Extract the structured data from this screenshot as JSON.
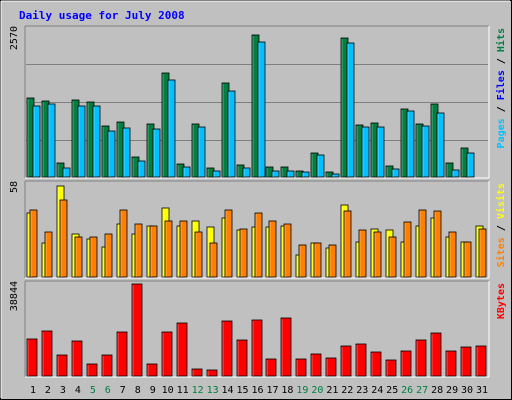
{
  "chart_data": [
    {
      "type": "bar",
      "title": "Daily usage for July 2008",
      "ymax_label": "2570",
      "ylabel_parts": [
        {
          "text": "Pages",
          "color": "#00C0FF"
        },
        {
          "text": " / ",
          "color": "#000000"
        },
        {
          "text": "Files",
          "color": "#0000FF"
        },
        {
          "text": " / ",
          "color": "#000000"
        },
        {
          "text": "Hits",
          "color": "#008040"
        }
      ],
      "ylim": [
        0,
        2570
      ],
      "categories": [
        "1",
        "2",
        "3",
        "4",
        "5",
        "6",
        "7",
        "8",
        "9",
        "10",
        "11",
        "12",
        "13",
        "14",
        "15",
        "16",
        "17",
        "18",
        "19",
        "20",
        "21",
        "22",
        "23",
        "24",
        "25",
        "26",
        "27",
        "28",
        "29",
        "30",
        "31"
      ],
      "weekend_days": [
        "5",
        "6",
        "12",
        "13",
        "19",
        "20",
        "26",
        "27"
      ],
      "series": [
        {
          "name": "Hits",
          "color": "#008040",
          "values": [
            1380,
            1320,
            240,
            1340,
            1310,
            880,
            960,
            340,
            920,
            1800,
            220,
            920,
            150,
            1640,
            200,
            2470,
            180,
            180,
            110,
            420,
            90,
            2420,
            900,
            940,
            190,
            1180,
            920,
            1270,
            240,
            510,
            0
          ]
        },
        {
          "name": "Files",
          "color": "#0000FF",
          "values": [
            0,
            0,
            0,
            0,
            0,
            0,
            0,
            0,
            0,
            0,
            0,
            0,
            0,
            0,
            0,
            0,
            0,
            0,
            0,
            0,
            0,
            0,
            0,
            0,
            0,
            0,
            0,
            0,
            0,
            0,
            0
          ]
        },
        {
          "name": "Pages",
          "color": "#00C0FF",
          "values": [
            1230,
            1260,
            150,
            1240,
            1240,
            800,
            850,
            270,
            830,
            1680,
            180,
            870,
            110,
            1490,
            160,
            2350,
            100,
            110,
            80,
            390,
            60,
            2320,
            870,
            870,
            140,
            1150,
            880,
            1120,
            130,
            420,
            0
          ]
        }
      ]
    },
    {
      "type": "bar",
      "ymax_label": "58",
      "ylabel_parts": [
        {
          "text": "Sites",
          "color": "#FF8000"
        },
        {
          "text": " / ",
          "color": "#000000"
        },
        {
          "text": "Visits",
          "color": "#FFFF00"
        }
      ],
      "ylim": [
        0,
        58
      ],
      "categories": [
        "1",
        "2",
        "3",
        "4",
        "5",
        "6",
        "7",
        "8",
        "9",
        "10",
        "11",
        "12",
        "13",
        "14",
        "15",
        "16",
        "17",
        "18",
        "19",
        "20",
        "21",
        "22",
        "23",
        "24",
        "25",
        "26",
        "27",
        "28",
        "29",
        "30",
        "31"
      ],
      "series": [
        {
          "name": "Visits",
          "color": "#FFFF00",
          "values": [
            40,
            21,
            57,
            27,
            24,
            19,
            33,
            27,
            32,
            43,
            32,
            35,
            31,
            37,
            29,
            31,
            31,
            32,
            14,
            21,
            18,
            45,
            22,
            30,
            29,
            22,
            32,
            37,
            25,
            22,
            32
          ]
        },
        {
          "name": "Sites",
          "color": "#FF8000",
          "values": [
            42,
            28,
            48,
            25,
            25,
            27,
            42,
            33,
            32,
            35,
            35,
            28,
            21,
            42,
            30,
            40,
            35,
            33,
            20,
            21,
            20,
            41,
            29,
            28,
            25,
            34,
            42,
            41,
            28,
            22,
            30
          ]
        }
      ]
    },
    {
      "type": "bar",
      "ymax_label": "38844",
      "ylabel_parts": [
        {
          "text": "KBytes",
          "color": "#FF0000"
        }
      ],
      "ylim": [
        0,
        38844
      ],
      "categories": [
        "1",
        "2",
        "3",
        "4",
        "5",
        "6",
        "7",
        "8",
        "9",
        "10",
        "11",
        "12",
        "13",
        "14",
        "15",
        "16",
        "17",
        "18",
        "19",
        "20",
        "21",
        "22",
        "23",
        "24",
        "25",
        "26",
        "27",
        "28",
        "29",
        "30",
        "31"
      ],
      "series": [
        {
          "name": "KBytes",
          "color": "#FF0000",
          "values": [
            15500,
            19200,
            8900,
            14700,
            5000,
            8800,
            18500,
            38844,
            5100,
            18700,
            22200,
            2900,
            2600,
            23100,
            15100,
            23600,
            7100,
            24400,
            7100,
            9200,
            7400,
            12600,
            13400,
            10100,
            6900,
            10700,
            15200,
            18200,
            10500,
            12300,
            12700
          ]
        }
      ]
    }
  ]
}
